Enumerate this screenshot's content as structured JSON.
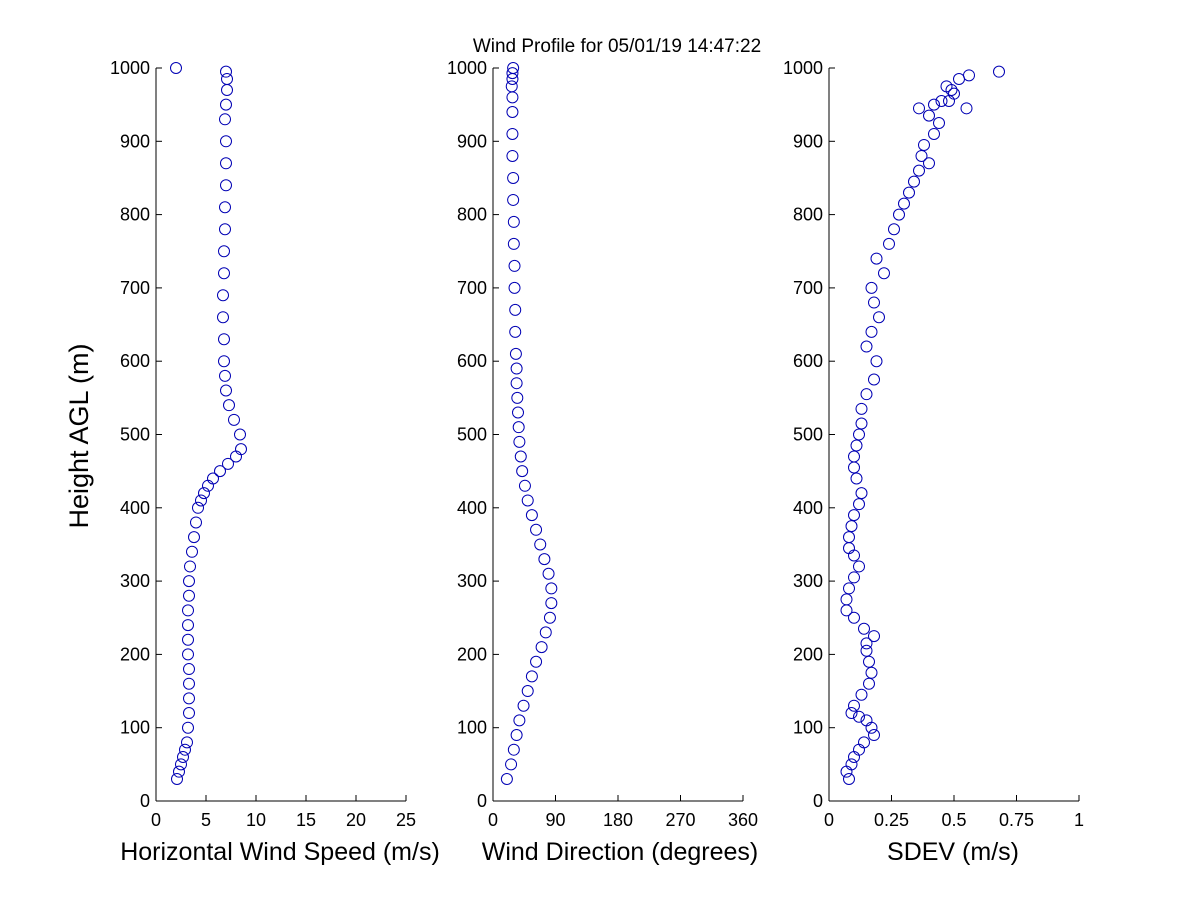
{
  "figure": {
    "title": "Wind Profile for  05/01/19 14:47:22",
    "ylabel": "Height AGL (m)"
  },
  "chart_data": [
    {
      "type": "scatter",
      "xlabel": "Horizontal Wind Speed (m/s)",
      "ylabel": "Height AGL (m)",
      "xlim": [
        0,
        25
      ],
      "ylim": [
        0,
        1000
      ],
      "xticks": [
        "0",
        "5",
        "10",
        "15",
        "20",
        "25"
      ],
      "yticks": [
        "0",
        "100",
        "200",
        "300",
        "400",
        "500",
        "600",
        "700",
        "800",
        "900",
        "1000"
      ],
      "marker_color": "#0000b4",
      "series": [
        {
          "x": [
            2.1,
            2.3,
            2.5,
            2.7,
            2.9,
            3.1,
            3.2,
            3.3,
            3.3,
            3.3,
            3.3,
            3.2,
            3.2,
            3.2,
            3.2,
            3.3,
            3.3,
            3.4,
            3.6,
            3.8,
            4.0,
            4.2,
            4.5,
            4.8,
            5.2,
            5.7,
            6.4,
            7.2,
            8.0,
            8.5,
            8.4,
            7.8,
            7.3,
            7.0,
            6.9,
            6.8,
            6.8,
            6.7,
            6.7,
            6.8,
            6.8,
            6.9,
            6.9,
            7.0,
            7.0,
            7.0,
            6.9,
            7.0,
            7.1,
            7.1,
            7.0,
            2.0
          ],
          "y": [
            30,
            40,
            50,
            60,
            70,
            80,
            100,
            120,
            140,
            160,
            180,
            200,
            220,
            240,
            260,
            280,
            300,
            320,
            340,
            360,
            380,
            400,
            410,
            420,
            430,
            440,
            450,
            460,
            470,
            480,
            500,
            520,
            540,
            560,
            580,
            600,
            630,
            660,
            690,
            720,
            750,
            780,
            810,
            840,
            870,
            900,
            930,
            950,
            970,
            985,
            995,
            1000
          ]
        }
      ]
    },
    {
      "type": "scatter",
      "xlabel": "Wind Direction (degrees)",
      "ylabel": "Height AGL (m)",
      "xlim": [
        0,
        360
      ],
      "ylim": [
        0,
        1000
      ],
      "xticks": [
        "0",
        "90",
        "180",
        "270",
        "360"
      ],
      "yticks": [
        "0",
        "100",
        "200",
        "300",
        "400",
        "500",
        "600",
        "700",
        "800",
        "900",
        "1000"
      ],
      "marker_color": "#0000b4",
      "series": [
        {
          "x": [
            20,
            26,
            30,
            34,
            38,
            44,
            50,
            56,
            62,
            70,
            76,
            82,
            84,
            84,
            80,
            74,
            68,
            62,
            56,
            50,
            46,
            42,
            40,
            38,
            37,
            36,
            35,
            34,
            34,
            33,
            32,
            32,
            31,
            31,
            30,
            30,
            29,
            29,
            28,
            28,
            28,
            28,
            27,
            28,
            28,
            29
          ],
          "y": [
            30,
            50,
            70,
            90,
            110,
            130,
            150,
            170,
            190,
            210,
            230,
            250,
            270,
            290,
            310,
            330,
            350,
            370,
            390,
            410,
            430,
            450,
            470,
            490,
            510,
            530,
            550,
            570,
            590,
            610,
            640,
            670,
            700,
            730,
            760,
            790,
            820,
            850,
            880,
            910,
            940,
            960,
            975,
            985,
            993,
            1000
          ]
        }
      ]
    },
    {
      "type": "scatter",
      "xlabel": "SDEV  (m/s)",
      "ylabel": "Height AGL (m)",
      "xlim": [
        0,
        1
      ],
      "ylim": [
        0,
        1000
      ],
      "xticks": [
        "0",
        "0.25",
        "0.5",
        "0.75",
        "1"
      ],
      "yticks": [
        "0",
        "100",
        "200",
        "300",
        "400",
        "500",
        "600",
        "700",
        "800",
        "900",
        "1000"
      ],
      "marker_color": "#0000b4",
      "series": [
        {
          "x": [
            0.08,
            0.07,
            0.09,
            0.1,
            0.12,
            0.14,
            0.18,
            0.17,
            0.15,
            0.12,
            0.09,
            0.1,
            0.13,
            0.16,
            0.17,
            0.16,
            0.15,
            0.15,
            0.18,
            0.14,
            0.1,
            0.07,
            0.07,
            0.08,
            0.1,
            0.12,
            0.1,
            0.08,
            0.08,
            0.09,
            0.1,
            0.12,
            0.13,
            0.11,
            0.1,
            0.1,
            0.11,
            0.12,
            0.13,
            0.13,
            0.15,
            0.18,
            0.19,
            0.15,
            0.17,
            0.2,
            0.18,
            0.17,
            0.22,
            0.19,
            0.24,
            0.26,
            0.28,
            0.3,
            0.32,
            0.34,
            0.36,
            0.4,
            0.37,
            0.38,
            0.42,
            0.44,
            0.4,
            0.36,
            0.42,
            0.48,
            0.55,
            0.5,
            0.45,
            0.47,
            0.52,
            0.49,
            0.56,
            0.68
          ],
          "y": [
            30,
            40,
            50,
            60,
            70,
            80,
            90,
            100,
            110,
            115,
            120,
            130,
            145,
            160,
            175,
            190,
            205,
            215,
            225,
            235,
            250,
            260,
            275,
            290,
            305,
            320,
            335,
            345,
            360,
            375,
            390,
            405,
            420,
            440,
            455,
            470,
            485,
            500,
            515,
            535,
            555,
            575,
            600,
            620,
            640,
            660,
            680,
            700,
            720,
            740,
            760,
            780,
            800,
            815,
            830,
            845,
            860,
            870,
            880,
            895,
            910,
            925,
            935,
            945,
            950,
            955,
            945,
            965,
            955,
            975,
            985,
            970,
            990,
            995
          ]
        }
      ]
    }
  ]
}
